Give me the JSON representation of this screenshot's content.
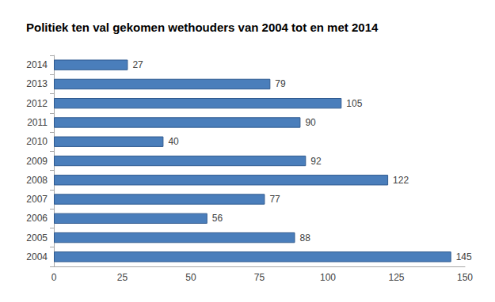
{
  "chart_data": {
    "type": "bar",
    "orientation": "horizontal",
    "title": "Politiek ten val gekomen wethouders van 2004 tot en met 2014",
    "categories": [
      "2004",
      "2005",
      "2006",
      "2007",
      "2008",
      "2009",
      "2010",
      "2011",
      "2012",
      "2013",
      "2014"
    ],
    "values": [
      145,
      88,
      56,
      77,
      122,
      92,
      40,
      90,
      105,
      79,
      27
    ],
    "color": "#4a7ebb",
    "xlim": [
      0,
      150
    ],
    "xticks": [
      0,
      25,
      50,
      75,
      100,
      125,
      150
    ],
    "grid": false,
    "data_labels": true
  }
}
